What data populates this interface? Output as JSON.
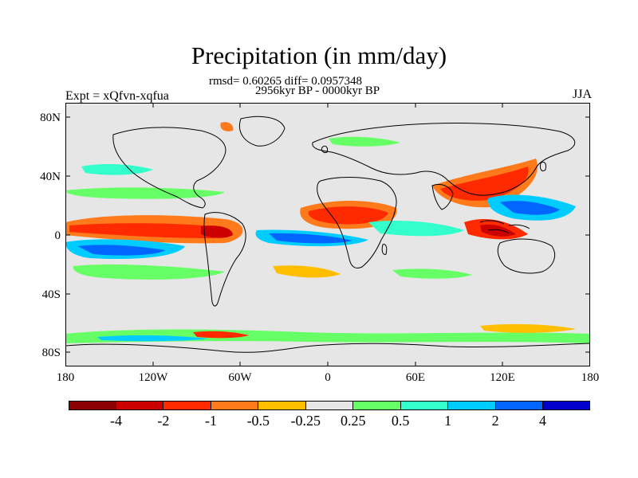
{
  "title": "Precipitation (in mm/day)",
  "stats_line": "rmsd= 0.60265 diff= 0.0957348",
  "period_line": "2956kyr BP - 0000kyr BP",
  "experiment": "Expt = xQfvn-xqfua",
  "season": "JJA",
  "lat_labels": [
    "80N",
    "40N",
    "0",
    "40S",
    "80S"
  ],
  "lon_labels": [
    "180",
    "120W",
    "60W",
    "0",
    "60E",
    "120E",
    "180"
  ],
  "colorbar": {
    "colors": [
      "#8b0000",
      "#cc0000",
      "#ff2a00",
      "#ff7a1a",
      "#ffbf00",
      "#e6e6e6",
      "#66ff66",
      "#33ffcc",
      "#00ccff",
      "#0066ff",
      "#0000cc"
    ],
    "labels": [
      "-4",
      "-2",
      "-1",
      "-0.5",
      "-0.25",
      "0.25",
      "0.5",
      "1",
      "2",
      "4"
    ]
  },
  "map": {
    "background_color": "#e6e6e6",
    "projection": "cylindrical equidistant",
    "lon_range": [
      -180,
      180
    ],
    "lat_range": [
      -90,
      90
    ]
  }
}
